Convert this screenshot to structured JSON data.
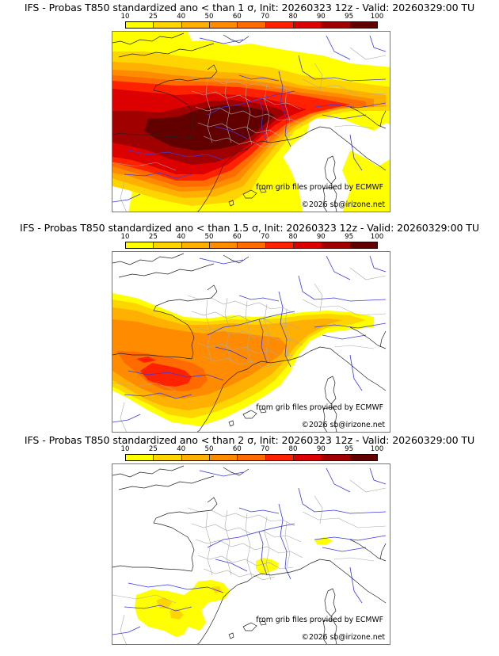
{
  "colorbar": {
    "ticks": [
      "10",
      "25",
      "40",
      "50",
      "60",
      "70",
      "80",
      "90",
      "95",
      "100"
    ],
    "colors": [
      "#ffff00",
      "#ffd500",
      "#ffb000",
      "#ff8c00",
      "#ff6b00",
      "#ff2200",
      "#dc0000",
      "#a00000",
      "#620000"
    ]
  },
  "credits": {
    "source": "from grib files provided by ECMWF",
    "copyright": "©2026 sb@irizone.net"
  },
  "panels": [
    {
      "title": "IFS - Probas T850  standardized ano < than 1 σ, Init: 20260323 12z - Valid: 20260329:00 TU",
      "threshold": "1 σ"
    },
    {
      "title": "IFS - Probas T850  standardized ano < than 1.5 σ, Init: 20260323 12z - Valid: 20260329:00 TU",
      "threshold": "1.5 σ"
    },
    {
      "title": "IFS - Probas T850  standardized ano < than 2 σ, Init: 20260323 12z - Valid: 20260329:00 TU",
      "threshold": "2 σ"
    }
  ],
  "chart_data": [
    {
      "type": "heatmap",
      "title": "IFS - Probas T850  standardized ano < than 1 σ, Init: 20260323 12z - Valid: 20260329:00 TU",
      "colorbar_levels": [
        10,
        25,
        40,
        50,
        60,
        70,
        80,
        90,
        95,
        100
      ],
      "units": "%",
      "region": "Western Europe",
      "max_probability_level": 95
    },
    {
      "type": "heatmap",
      "title": "IFS - Probas T850  standardized ano < than 1.5 σ, Init: 20260323 12z - Valid: 20260329:00 TU",
      "colorbar_levels": [
        10,
        25,
        40,
        50,
        60,
        70,
        80,
        90,
        95,
        100
      ],
      "units": "%",
      "region": "Western Europe",
      "max_probability_level": 70
    },
    {
      "type": "heatmap",
      "title": "IFS - Probas T850  standardized ano < than 2 σ, Init: 20260323 12z - Valid: 20260329:00 TU",
      "colorbar_levels": [
        10,
        25,
        40,
        50,
        60,
        70,
        80,
        90,
        95,
        100
      ],
      "units": "%",
      "region": "Western Europe",
      "max_probability_level": 25
    }
  ]
}
